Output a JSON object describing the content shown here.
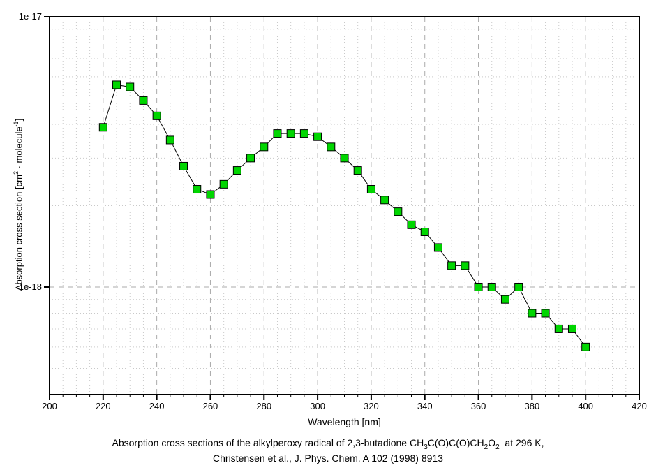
{
  "chart_data": {
    "type": "line",
    "title": "",
    "xlabel": "Wavelength [nm]",
    "ylabel_parts": [
      {
        "t": "Absorption cross section [cm"
      },
      {
        "sup": "2"
      },
      {
        "t": " · molecule"
      },
      {
        "sup": "-1"
      },
      {
        "t": "]"
      }
    ],
    "xlim": [
      200,
      420
    ],
    "ylim": [
      4e-19,
      1e-17
    ],
    "yscale": "log",
    "x_major_ticks": [
      200,
      220,
      240,
      260,
      280,
      300,
      320,
      340,
      360,
      380,
      400,
      420
    ],
    "x_minor_step": 5,
    "y_ticks": [
      {
        "v": 1e-17,
        "label": "1e-17"
      },
      {
        "v": 1e-18,
        "label": "1e-18"
      }
    ],
    "grid": {
      "minor_color": "#c9c9c9",
      "major_color": "#ababab",
      "minor_dash": "1 3",
      "major_dash": "7 6"
    },
    "series": [
      {
        "name": "absorption-cross-section",
        "x": [
          220,
          225,
          230,
          235,
          240,
          245,
          250,
          255,
          260,
          265,
          270,
          275,
          280,
          285,
          290,
          295,
          300,
          305,
          310,
          315,
          320,
          325,
          330,
          335,
          340,
          345,
          350,
          355,
          360,
          365,
          370,
          375,
          380,
          385,
          390,
          395,
          400
        ],
        "values": [
          3.9e-18,
          5.6e-18,
          5.5e-18,
          4.9e-18,
          4.3e-18,
          3.5e-18,
          2.8e-18,
          2.3e-18,
          2.2e-18,
          2.4e-18,
          2.7e-18,
          3e-18,
          3.3e-18,
          3.7e-18,
          3.7e-18,
          3.7e-18,
          3.6e-18,
          3.3e-18,
          3e-18,
          2.7e-18,
          2.3e-18,
          2.1e-18,
          1.9e-18,
          1.7e-18,
          1.6e-18,
          1.4e-18,
          1.2e-18,
          1.2e-18,
          1e-18,
          1e-18,
          9e-19,
          1e-18,
          8e-19,
          8e-19,
          7e-19,
          7e-19,
          6e-19
        ],
        "line_color": "#000000",
        "marker": {
          "shape": "square",
          "size": 11,
          "fill": "#00d600",
          "edge": "#000000"
        }
      }
    ],
    "frame_color": "#000000",
    "legend": "none"
  },
  "caption": {
    "line1_parts": [
      {
        "t": "Absorption cross sections of the alkylperoxy radical of 2,3-butadione CH"
      },
      {
        "sub": "3"
      },
      {
        "t": "C(O)C(O)CH"
      },
      {
        "sub": "2"
      },
      {
        "t": "O"
      },
      {
        "sub": "2"
      },
      {
        "t": "  at 296 K,"
      }
    ],
    "line2": "Christensen et al., J. Phys. Chem. A 102 (1998) 8913"
  }
}
